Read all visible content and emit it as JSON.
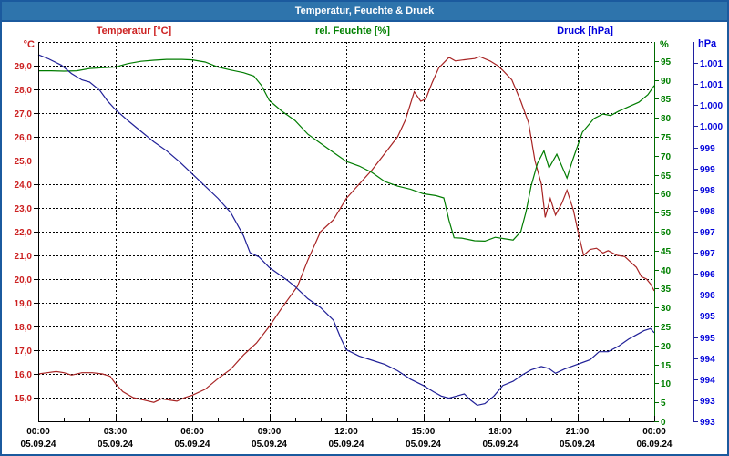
{
  "window": {
    "title": "Temperatur, Feuchte & Druck"
  },
  "headers": {
    "temperature": {
      "label": "Temperatur [°C]",
      "color": "#CC2020"
    },
    "humidity": {
      "label": "rel. Feuchte [%]",
      "color": "#008000"
    },
    "pressure": {
      "label": "Druck [hPa]",
      "color": "#0000DC"
    }
  },
  "axis_units": {
    "left": "°C",
    "right_inner": "%",
    "right_outer": "hPa"
  },
  "chart_data": {
    "type": "line",
    "title": "Temperatur, Feuchte & Druck",
    "grid": {
      "style": "dashed",
      "color": "#000000"
    },
    "x_axis": {
      "unit": "time",
      "range_hours": [
        0,
        24
      ],
      "grid_step": 3,
      "minor_tick_hours": 1,
      "tick_hours": [
        0,
        3,
        6,
        9,
        12,
        15,
        18,
        21,
        24
      ],
      "tick_times": [
        "00:00",
        "03:00",
        "06:00",
        "09:00",
        "12:00",
        "15:00",
        "18:00",
        "21:00",
        "00:00"
      ],
      "tick_dates": [
        "05.09.24",
        "05.09.24",
        "05.09.24",
        "05.09.24",
        "05.09.24",
        "05.09.24",
        "05.09.24",
        "05.09.24",
        "06.09.24"
      ]
    },
    "axes": {
      "temperature": {
        "label": "Temperatur [°C]",
        "unit": "°C",
        "min": 14,
        "max": 30,
        "tick_values": [
          29,
          28,
          27,
          26,
          25,
          24,
          23,
          22,
          21,
          20,
          19,
          18,
          17,
          16,
          15
        ],
        "tick_labels": [
          "29,0",
          "28,0",
          "27,0",
          "26,0",
          "25,0",
          "24,0",
          "23,0",
          "22,0",
          "21,0",
          "20,0",
          "19,0",
          "18,0",
          "17,0",
          "16,0",
          "15,0"
        ],
        "label_color": "#CC2020",
        "axis_color": "#000000",
        "grid": true
      },
      "humidity": {
        "label": "rel. Feuchte [%]",
        "unit": "%",
        "min": 0,
        "max": 100,
        "tick_values": [
          95,
          90,
          85,
          80,
          75,
          70,
          65,
          60,
          55,
          50,
          45,
          40,
          35,
          30,
          25,
          20,
          15,
          10,
          5,
          0
        ],
        "tick_labels": [
          "95",
          "90",
          "85",
          "80",
          "75",
          "70",
          "65",
          "60",
          "55",
          "50",
          "45",
          "40",
          "35",
          "30",
          "25",
          "20",
          "15",
          "10",
          "5",
          "0"
        ],
        "label_color": "#008000",
        "axis_color": "#006A00",
        "grid": false
      },
      "pressure": {
        "label": "Druck [hPa]",
        "unit": "hPa",
        "min": 992.5,
        "max": 1001.5,
        "tick_values": [
          1001,
          1000.5,
          1000,
          999.5,
          999,
          998.5,
          998,
          997.5,
          997,
          996.5,
          996,
          995.5,
          995,
          994.5,
          994,
          993.5,
          993,
          992.5
        ],
        "tick_labels": [
          "1.001",
          "1.001",
          "1.000",
          "1.000",
          "999",
          "999",
          "998",
          "998",
          "997",
          "997",
          "996",
          "996",
          "995",
          "995",
          "994",
          "994",
          "993",
          "993"
        ],
        "label_color": "#0000DC",
        "axis_color": "#2020A0",
        "grid": false
      }
    },
    "series": [
      {
        "name": "Temperatur",
        "unit": "°C",
        "axis": "temperature",
        "color": "#A82424",
        "points": [
          [
            0,
            16.0
          ],
          [
            0.35,
            16.05
          ],
          [
            0.7,
            16.1
          ],
          [
            1.0,
            16.05
          ],
          [
            1.3,
            15.95
          ],
          [
            1.7,
            16.05
          ],
          [
            2.1,
            16.05
          ],
          [
            2.5,
            16.0
          ],
          [
            2.8,
            15.9
          ],
          [
            3.0,
            15.6
          ],
          [
            3.3,
            15.25
          ],
          [
            3.7,
            15.0
          ],
          [
            4.1,
            14.9
          ],
          [
            4.5,
            14.8
          ],
          [
            4.8,
            14.95
          ],
          [
            5.1,
            14.9
          ],
          [
            5.4,
            14.85
          ],
          [
            5.7,
            15.0
          ],
          [
            6.0,
            15.1
          ],
          [
            6.5,
            15.35
          ],
          [
            7.0,
            15.8
          ],
          [
            7.5,
            16.2
          ],
          [
            8.0,
            16.8
          ],
          [
            8.5,
            17.3
          ],
          [
            9.0,
            18.0
          ],
          [
            9.5,
            18.8
          ],
          [
            10.1,
            19.7
          ],
          [
            10.5,
            20.8
          ],
          [
            11.0,
            22.0
          ],
          [
            11.5,
            22.5
          ],
          [
            12.0,
            23.4
          ],
          [
            12.5,
            24.0
          ],
          [
            13.0,
            24.6
          ],
          [
            13.5,
            25.3
          ],
          [
            14.0,
            26.0
          ],
          [
            14.3,
            26.7
          ],
          [
            14.65,
            27.9
          ],
          [
            14.9,
            27.5
          ],
          [
            15.1,
            27.6
          ],
          [
            15.35,
            28.3
          ],
          [
            15.6,
            28.9
          ],
          [
            16.0,
            29.35
          ],
          [
            16.25,
            29.2
          ],
          [
            16.6,
            29.25
          ],
          [
            17.0,
            29.3
          ],
          [
            17.2,
            29.38
          ],
          [
            17.6,
            29.2
          ],
          [
            17.9,
            29.0
          ],
          [
            18.1,
            28.8
          ],
          [
            18.45,
            28.4
          ],
          [
            18.8,
            27.5
          ],
          [
            19.1,
            26.6
          ],
          [
            19.35,
            25.0
          ],
          [
            19.6,
            24.0
          ],
          [
            19.75,
            22.6
          ],
          [
            19.95,
            23.4
          ],
          [
            20.15,
            22.7
          ],
          [
            20.4,
            23.2
          ],
          [
            20.6,
            23.75
          ],
          [
            20.85,
            22.9
          ],
          [
            21.05,
            21.9
          ],
          [
            21.25,
            21.0
          ],
          [
            21.5,
            21.25
          ],
          [
            21.75,
            21.3
          ],
          [
            22.0,
            21.1
          ],
          [
            22.2,
            21.2
          ],
          [
            22.55,
            21.0
          ],
          [
            22.85,
            20.95
          ],
          [
            23.1,
            20.7
          ],
          [
            23.3,
            20.5
          ],
          [
            23.5,
            20.1
          ],
          [
            23.7,
            20.0
          ],
          [
            23.85,
            19.8
          ],
          [
            24.0,
            19.5
          ]
        ]
      },
      {
        "name": "rel. Feuchte",
        "unit": "%",
        "axis": "humidity",
        "color": "#007C00",
        "points": [
          [
            0,
            92.4
          ],
          [
            0.5,
            92.4
          ],
          [
            1.0,
            92.3
          ],
          [
            1.5,
            92.4
          ],
          [
            2.0,
            93.0
          ],
          [
            2.5,
            93.2
          ],
          [
            3.0,
            93.4
          ],
          [
            3.5,
            94.3
          ],
          [
            4.0,
            94.9
          ],
          [
            4.5,
            95.2
          ],
          [
            5.0,
            95.4
          ],
          [
            5.6,
            95.4
          ],
          [
            6.0,
            95.3
          ],
          [
            6.5,
            94.7
          ],
          [
            7.0,
            93.4
          ],
          [
            7.5,
            92.6
          ],
          [
            8.0,
            91.9
          ],
          [
            8.4,
            91.0
          ],
          [
            8.7,
            88.5
          ],
          [
            9.0,
            84.6
          ],
          [
            9.5,
            81.7
          ],
          [
            10.0,
            79.3
          ],
          [
            10.5,
            75.7
          ],
          [
            11.0,
            73.3
          ],
          [
            11.5,
            70.9
          ],
          [
            12.0,
            68.5
          ],
          [
            12.5,
            67.3
          ],
          [
            13.0,
            65.6
          ],
          [
            13.5,
            63.2
          ],
          [
            14.0,
            62.0
          ],
          [
            14.5,
            61.2
          ],
          [
            15.0,
            60.0
          ],
          [
            15.5,
            59.5
          ],
          [
            15.8,
            58.9
          ],
          [
            16.0,
            53.0
          ],
          [
            16.2,
            48.4
          ],
          [
            16.5,
            48.3
          ],
          [
            17.0,
            47.6
          ],
          [
            17.4,
            47.5
          ],
          [
            17.8,
            48.5
          ],
          [
            18.1,
            48.2
          ],
          [
            18.5,
            47.8
          ],
          [
            18.8,
            50.0
          ],
          [
            19.0,
            55.2
          ],
          [
            19.2,
            62.0
          ],
          [
            19.45,
            68.0
          ],
          [
            19.7,
            71.3
          ],
          [
            19.9,
            66.8
          ],
          [
            20.2,
            70.4
          ],
          [
            20.6,
            64.1
          ],
          [
            20.8,
            68.5
          ],
          [
            21.2,
            76.2
          ],
          [
            21.65,
            79.8
          ],
          [
            22.0,
            81.0
          ],
          [
            22.3,
            80.6
          ],
          [
            22.6,
            81.7
          ],
          [
            23.0,
            82.9
          ],
          [
            23.4,
            84.1
          ],
          [
            23.75,
            86.1
          ],
          [
            24.0,
            88.5
          ]
        ]
      },
      {
        "name": "Druck",
        "unit": "hPa",
        "axis": "pressure",
        "color": "#202098",
        "points": [
          [
            0,
            1001.2
          ],
          [
            0.4,
            1001.1
          ],
          [
            0.9,
            1000.95
          ],
          [
            1.3,
            1000.75
          ],
          [
            1.7,
            1000.6
          ],
          [
            2.0,
            1000.55
          ],
          [
            2.4,
            1000.35
          ],
          [
            2.7,
            1000.1
          ],
          [
            3.0,
            999.9
          ],
          [
            3.5,
            999.63
          ],
          [
            4.0,
            999.38
          ],
          [
            4.5,
            999.13
          ],
          [
            5.0,
            998.92
          ],
          [
            5.5,
            998.66
          ],
          [
            6.0,
            998.37
          ],
          [
            6.5,
            998.08
          ],
          [
            7.0,
            997.79
          ],
          [
            7.5,
            997.45
          ],
          [
            8.0,
            996.9
          ],
          [
            8.25,
            996.5
          ],
          [
            8.6,
            996.4
          ],
          [
            9.0,
            996.15
          ],
          [
            9.35,
            996.0
          ],
          [
            9.7,
            995.85
          ],
          [
            10.0,
            995.7
          ],
          [
            10.5,
            995.41
          ],
          [
            11.0,
            995.2
          ],
          [
            11.5,
            994.9
          ],
          [
            11.8,
            994.45
          ],
          [
            12.0,
            994.2
          ],
          [
            12.5,
            994.05
          ],
          [
            13.0,
            993.95
          ],
          [
            13.5,
            993.85
          ],
          [
            14.0,
            993.7
          ],
          [
            14.5,
            993.5
          ],
          [
            15.0,
            993.35
          ],
          [
            15.4,
            993.2
          ],
          [
            15.7,
            993.1
          ],
          [
            16.0,
            993.05
          ],
          [
            16.3,
            993.1
          ],
          [
            16.6,
            993.15
          ],
          [
            16.85,
            993.0
          ],
          [
            17.1,
            992.88
          ],
          [
            17.4,
            992.92
          ],
          [
            17.75,
            993.1
          ],
          [
            18.1,
            993.35
          ],
          [
            18.5,
            993.45
          ],
          [
            18.85,
            993.6
          ],
          [
            19.2,
            993.72
          ],
          [
            19.6,
            993.8
          ],
          [
            19.9,
            993.75
          ],
          [
            20.15,
            993.64
          ],
          [
            20.5,
            993.74
          ],
          [
            21.0,
            993.85
          ],
          [
            21.5,
            993.96
          ],
          [
            21.85,
            994.15
          ],
          [
            22.2,
            994.15
          ],
          [
            22.6,
            994.28
          ],
          [
            23.0,
            994.45
          ],
          [
            23.3,
            994.55
          ],
          [
            23.6,
            994.65
          ],
          [
            23.85,
            994.7
          ],
          [
            24.0,
            994.6
          ]
        ]
      }
    ]
  }
}
